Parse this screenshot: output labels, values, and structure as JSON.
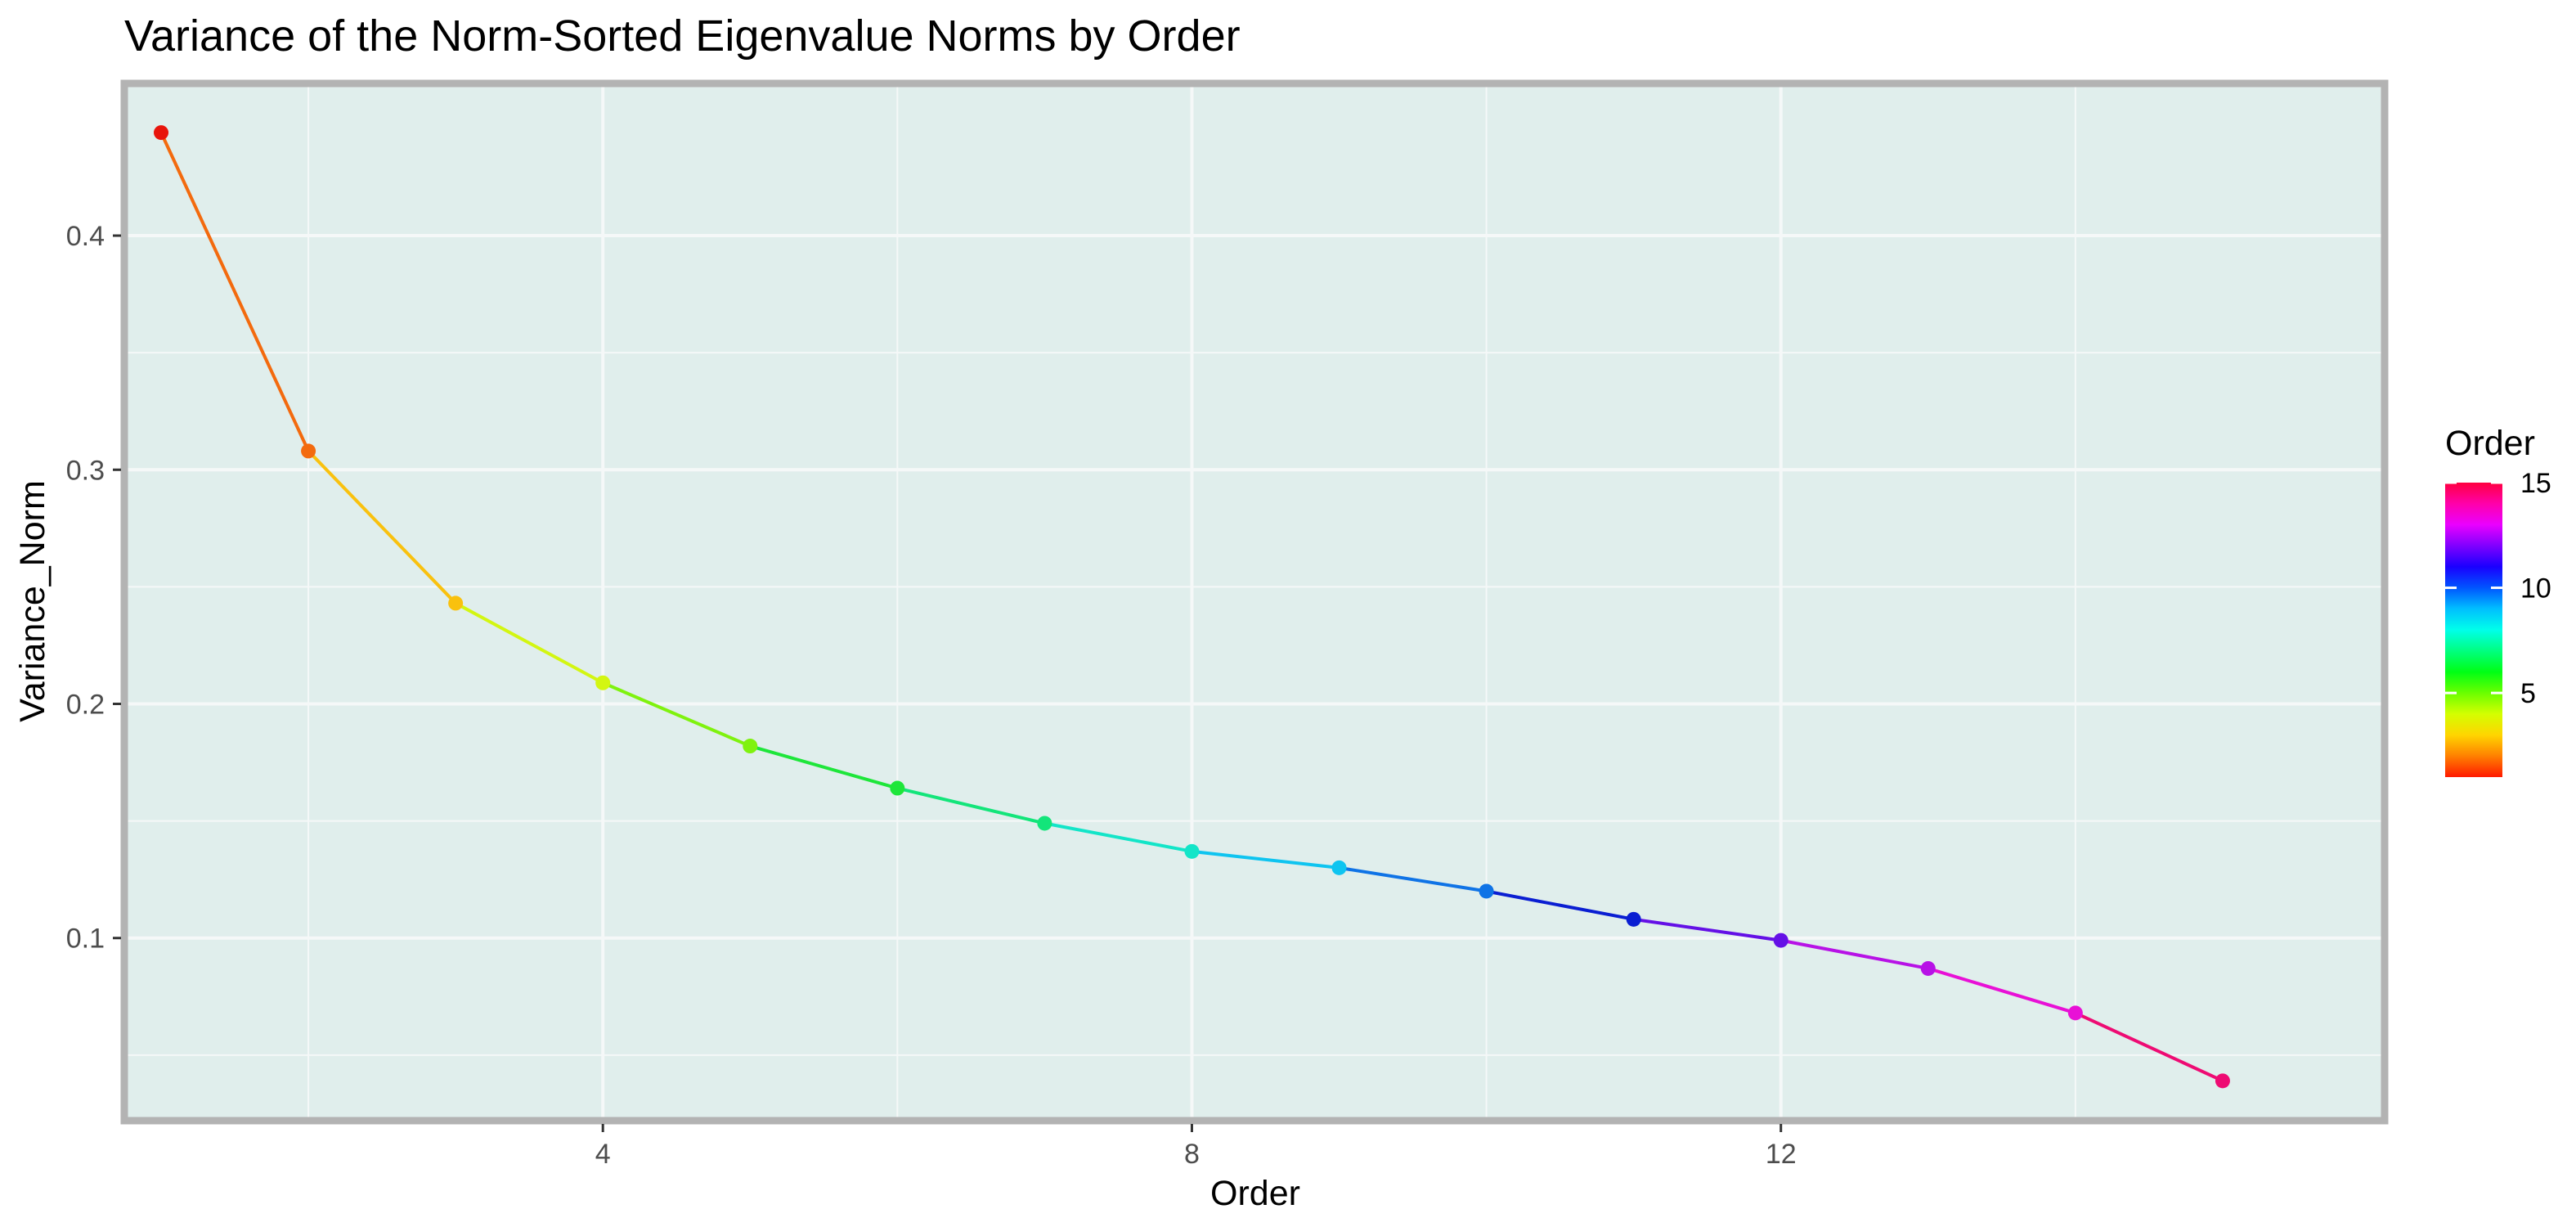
{
  "chart_data": {
    "type": "line",
    "title": "Variance of the Norm-Sorted Eigenvalue Norms by Order",
    "xlabel": "Order",
    "ylabel": "Variance_Norm",
    "xlim": [
      0.75,
      16.1
    ],
    "ylim": [
      0.022,
      0.465
    ],
    "x_ticks": [
      4,
      8,
      12
    ],
    "x_tick_labels": [
      "4",
      "8",
      "12"
    ],
    "x_minor_ticks": [
      2,
      6,
      10,
      14
    ],
    "y_ticks": [
      0.1,
      0.2,
      0.3,
      0.4
    ],
    "y_tick_labels": [
      "0.1",
      "0.2",
      "0.3",
      "0.4"
    ],
    "y_minor_ticks": [
      0.05,
      0.15,
      0.25,
      0.35
    ],
    "grid": true,
    "markers": true,
    "series": [
      {
        "x": [
          1,
          2,
          3,
          4,
          5,
          6,
          7,
          8,
          9,
          10,
          11,
          12,
          13,
          14,
          15
        ],
        "values": [
          0.444,
          0.308,
          0.243,
          0.209,
          0.182,
          0.164,
          0.149,
          0.137,
          0.13,
          0.12,
          0.108,
          0.099,
          0.087,
          0.068,
          0.039
        ],
        "colors": [
          "#E8140B",
          "#F36A0E",
          "#F9C10E",
          "#D3F611",
          "#7FF20E",
          "#1EE63A",
          "#13E57A",
          "#13E5C8",
          "#0FC4F0",
          "#0F73E6",
          "#0A1ED2",
          "#6410E6",
          "#B712E6",
          "#E810D6",
          "#EE0B73"
        ]
      }
    ],
    "legend": {
      "title": "Order",
      "type": "colorbar",
      "placement": "right",
      "ticks": [
        5,
        10,
        15
      ],
      "tick_labels": [
        "5",
        "10",
        "15"
      ],
      "range": [
        1,
        15
      ],
      "gradient_colors": [
        "#FF1A00",
        "#FF8000",
        "#FFD500",
        "#D4FF00",
        "#6AFF00",
        "#00FF15",
        "#00FF80",
        "#00FFEA",
        "#00BFFF",
        "#0055FF",
        "#1A00FF",
        "#8000FF",
        "#EA00FF",
        "#FF00AA",
        "#FF0040"
      ]
    },
    "panel_background": "#E0EEEC",
    "panel_border": "#B3B3B3",
    "grid_color": "#F5F8F8"
  }
}
